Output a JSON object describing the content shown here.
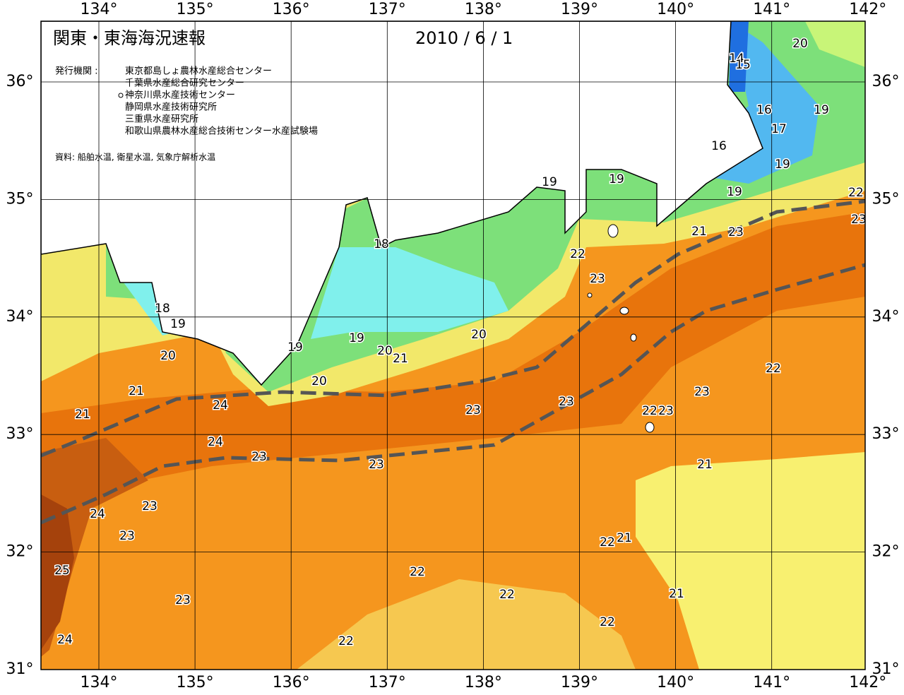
{
  "header": {
    "title": "関東・東海海況速報",
    "date": "2010 / 6 / 1",
    "issuer_label": "発行機関 :",
    "issuers": [
      "東京都島しょ農林水産総合センター",
      "千葉県水産総合研究センター",
      "神奈川県水産技術センター",
      "静岡県水産技術研究所",
      "三重県水産研究所",
      "和歌山県農林水産総合技術センター水産試験場"
    ],
    "source": "資料: 船舶水温, 衛星水温, 気象庁解析水温"
  },
  "map": {
    "lon_ticks": [
      {
        "value": 134,
        "label": "134°"
      },
      {
        "value": 135,
        "label": "135°"
      },
      {
        "value": 136,
        "label": "136°"
      },
      {
        "value": 137,
        "label": "137°"
      },
      {
        "value": 138,
        "label": "138°"
      },
      {
        "value": 139,
        "label": "139°"
      },
      {
        "value": 140,
        "label": "140°"
      },
      {
        "value": 141,
        "label": "141°"
      },
      {
        "value": 142,
        "label": "142°"
      }
    ],
    "lat_ticks": [
      {
        "value": 31,
        "label": "31°"
      },
      {
        "value": 32,
        "label": "32°"
      },
      {
        "value": 33,
        "label": "33°"
      },
      {
        "value": 34,
        "label": "34°"
      },
      {
        "value": 35,
        "label": "35°"
      },
      {
        "value": 36,
        "label": "36°"
      }
    ],
    "contour_labels": [
      20,
      14,
      15,
      16,
      19,
      17,
      16,
      19,
      19,
      22,
      23,
      19,
      19,
      21,
      23,
      18,
      22,
      23,
      18,
      19,
      20,
      19,
      19,
      20,
      20,
      21,
      22,
      20,
      21,
      23,
      24,
      23,
      23,
      22,
      23,
      21,
      24,
      23,
      23,
      21,
      23,
      24,
      23,
      22,
      21,
      25,
      22,
      22,
      23,
      21,
      22,
      22,
      24
    ]
  }
}
